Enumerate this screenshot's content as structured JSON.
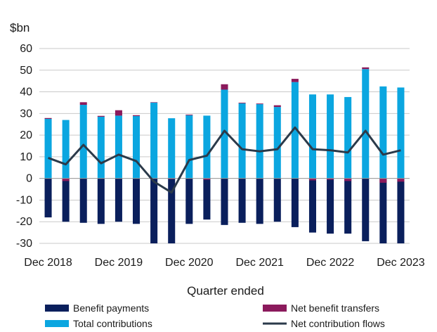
{
  "chart_data": {
    "type": "bar",
    "unit_label": "$bn",
    "xlabel": "Quarter ended",
    "ylim": [
      -30,
      60
    ],
    "yticks": [
      -30,
      -20,
      -10,
      0,
      10,
      20,
      30,
      40,
      50,
      60
    ],
    "grid": true,
    "legend_position": "bottom",
    "categories": [
      "Dec 2018",
      "Mar 2019",
      "Jun 2019",
      "Sep 2019",
      "Dec 2019",
      "Mar 2020",
      "Jun 2020",
      "Sep 2020",
      "Dec 2020",
      "Mar 2021",
      "Jun 2021",
      "Sep 2021",
      "Dec 2021",
      "Mar 2022",
      "Jun 2022",
      "Sep 2022",
      "Dec 2022",
      "Mar 2023",
      "Jun 2023",
      "Sep 2023",
      "Dec 2023"
    ],
    "xtick_labels": [
      {
        "index": 0,
        "label": "Dec 2018"
      },
      {
        "index": 4,
        "label": "Dec 2019"
      },
      {
        "index": 8,
        "label": "Dec 2020"
      },
      {
        "index": 12,
        "label": "Dec 2021"
      },
      {
        "index": 16,
        "label": "Dec 2022"
      },
      {
        "index": 20,
        "label": "Dec 2023"
      }
    ],
    "series": [
      {
        "name": "Benefit payments",
        "kind": "bar",
        "color": "#0a1f5c",
        "values": [
          -18,
          -20,
          -20.5,
          -21,
          -20,
          -21,
          -30,
          -30,
          -21,
          -19,
          -21.5,
          -20.5,
          -21,
          -20,
          -22.5,
          -25,
          -25.5,
          -25.5,
          -29,
          -30,
          -30
        ]
      },
      {
        "name": "Net benefit transfers",
        "kind": "bar",
        "color": "#8b1a5c",
        "values": [
          0.4,
          -1.2,
          1.2,
          0.4,
          2.5,
          0.4,
          0.2,
          -0.3,
          0.3,
          -0.6,
          2.5,
          0.3,
          0.3,
          0.8,
          1.5,
          -0.9,
          -0.6,
          -1.2,
          0.8,
          -2,
          -1.5
        ]
      },
      {
        "name": "Total contributions",
        "kind": "bar",
        "color": "#0ba6e0",
        "values": [
          27.5,
          27,
          34,
          28.5,
          29,
          28.8,
          35,
          27.8,
          29.2,
          29,
          41,
          34.7,
          34.3,
          33,
          44.5,
          38.8,
          38.8,
          37.6,
          50.5,
          42.5,
          42
        ]
      },
      {
        "name": "Net contribution flows",
        "kind": "line",
        "color": "#2b3a4a",
        "values": [
          9.5,
          6.5,
          15.5,
          7,
          11,
          8,
          -1.5,
          -6.5,
          8.5,
          10.5,
          22,
          13.5,
          12.5,
          13.5,
          23.5,
          13.5,
          13,
          12,
          22,
          11,
          13
        ]
      }
    ]
  }
}
